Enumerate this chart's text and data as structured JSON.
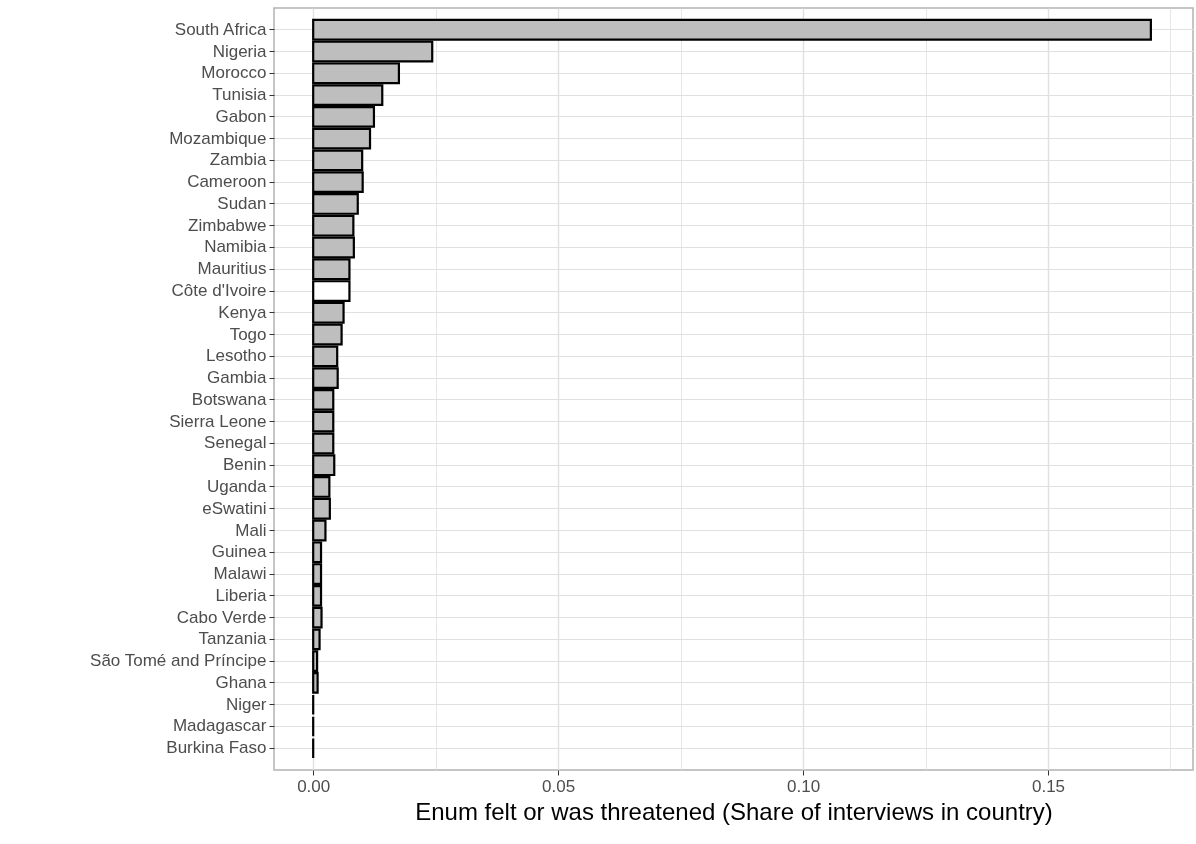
{
  "chart_data": {
    "type": "bar",
    "orientation": "horizontal",
    "xlabel": "Enum felt or was threatened (Share of interviews in country)",
    "categories": [
      "South Africa",
      "Nigeria",
      "Morocco",
      "Tunisia",
      "Gabon",
      "Mozambique",
      "Zambia",
      "Cameroon",
      "Sudan",
      "Zimbabwe",
      "Namibia",
      "Mauritius",
      "Côte d'Ivoire",
      "Kenya",
      "Togo",
      "Lesotho",
      "Gambia",
      "Botswana",
      "Sierra Leone",
      "Senegal",
      "Benin",
      "Uganda",
      "eSwatini",
      "Mali",
      "Guinea",
      "Malawi",
      "Liberia",
      "Cabo Verde",
      "Tanzania",
      "São Tomé and Príncipe",
      "Ghana",
      "Niger",
      "Madagascar",
      "Burkina Faso"
    ],
    "values": [
      0.171,
      0.0243,
      0.0175,
      0.0141,
      0.0124,
      0.0116,
      0.01,
      0.0101,
      0.0091,
      0.0082,
      0.0083,
      0.0074,
      0.0074,
      0.0062,
      0.0058,
      0.0049,
      0.005,
      0.0041,
      0.0041,
      0.0041,
      0.0043,
      0.0033,
      0.0034,
      0.0025,
      0.0016,
      0.0016,
      0.0016,
      0.0017,
      0.0013,
      0.0008,
      0.0009,
      0,
      0,
      0
    ],
    "colors": [
      "#bebebe",
      "#bebebe",
      "#bebebe",
      "#bebebe",
      "#bebebe",
      "#bebebe",
      "#bebebe",
      "#bebebe",
      "#bebebe",
      "#bebebe",
      "#bebebe",
      "#bebebe",
      "#ffffff",
      "#bebebe",
      "#bebebe",
      "#bebebe",
      "#bebebe",
      "#bebebe",
      "#bebebe",
      "#bebebe",
      "#bebebe",
      "#bebebe",
      "#bebebe",
      "#bebebe",
      "#bebebe",
      "#bebebe",
      "#bebebe",
      "#bebebe",
      "#bebebe",
      "#bebebe",
      "#bebebe",
      "#000000",
      "#000000",
      "#000000"
    ],
    "xlim": [
      -0.008,
      0.1796
    ],
    "xticks": [
      {
        "value": 0,
        "label": "0.00"
      },
      {
        "value": 0.025,
        "label": null
      },
      {
        "value": 0.05,
        "label": "0.05"
      },
      {
        "value": 0.075,
        "label": null
      },
      {
        "value": 0.1,
        "label": "0.10"
      },
      {
        "value": 0.125,
        "label": null
      },
      {
        "value": 0.15,
        "label": "0.15"
      },
      {
        "value": 0.175,
        "label": null
      }
    ],
    "grid": true
  }
}
